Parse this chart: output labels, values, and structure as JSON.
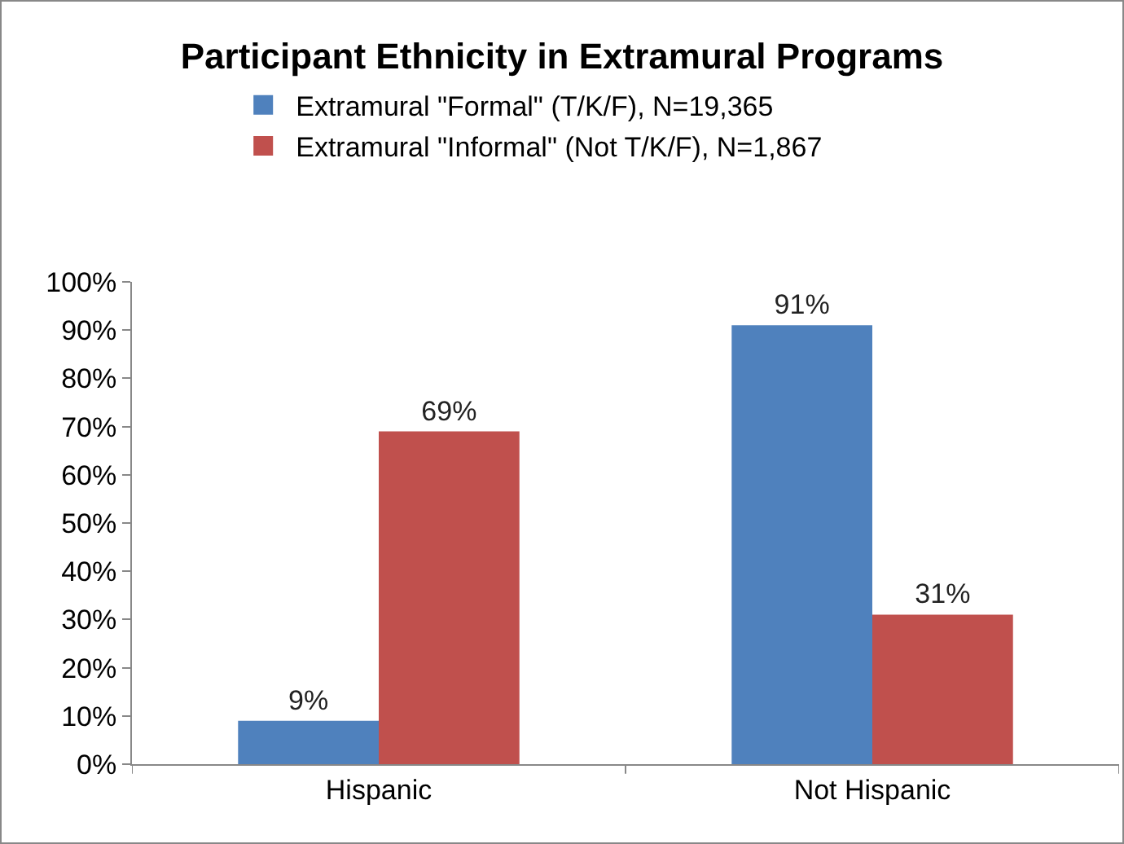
{
  "chart_data": {
    "type": "bar",
    "title": "Participant Ethnicity in Extramural Programs",
    "categories": [
      "Hispanic",
      "Not Hispanic"
    ],
    "series": [
      {
        "name": "Extramural \"Formal\" (T/K/F), N=19,365",
        "color": "#4f81bd",
        "values": [
          9,
          91
        ],
        "value_labels": [
          "9%",
          "91%"
        ]
      },
      {
        "name": "Extramural \"Informal\" (Not T/K/F), N=1,867",
        "color": "#c0504d",
        "values": [
          69,
          31
        ],
        "value_labels": [
          "69%",
          "31%"
        ]
      }
    ],
    "ylim": [
      0,
      100
    ],
    "yticks": [
      {
        "value": 0,
        "label": "0%"
      },
      {
        "value": 10,
        "label": "10%"
      },
      {
        "value": 20,
        "label": "20%"
      },
      {
        "value": 30,
        "label": "30%"
      },
      {
        "value": 40,
        "label": "40%"
      },
      {
        "value": 50,
        "label": "50%"
      },
      {
        "value": 60,
        "label": "60%"
      },
      {
        "value": 70,
        "label": "70%"
      },
      {
        "value": 80,
        "label": "80%"
      },
      {
        "value": 90,
        "label": "90%"
      },
      {
        "value": 100,
        "label": "100%"
      }
    ],
    "grid": false,
    "legend": "top"
  }
}
